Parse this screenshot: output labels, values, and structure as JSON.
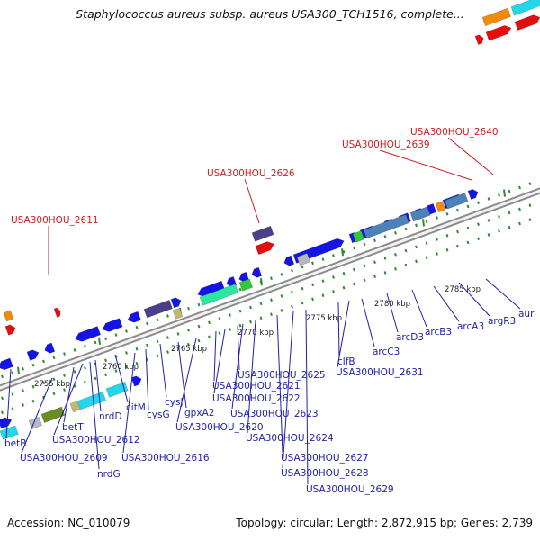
{
  "title": "Staphylococcus aureus subsp. aureus USA300_TCH1516, complete...",
  "footer": {
    "accession": "Accession: NC_010079",
    "topology": "Topology: circular; Length: 2,872,915 bp; Genes: 2,739"
  },
  "colors": {
    "line_outline": "#8c8c8c",
    "line_fill": "#f2f2f2",
    "tick": "#2e8b2e",
    "label_blue": "#1f1fa8",
    "label_red": "#cc1f1f",
    "gene_blue": "#1414e6",
    "gene_red": "#e60d0d",
    "gene_cyan": "#22d8e8",
    "gene_steel": "#4d82b8",
    "gene_purple": "#4b3f8a",
    "gene_olive": "#6b8c21",
    "gene_khaki": "#c2b874",
    "gene_green": "#2fc93a",
    "gene_mint": "#2ee6a0",
    "gene_orange": "#f08c0a",
    "gene_grey": "#b8b8b8"
  },
  "kbp_labels": [
    "2755 kbp",
    "2760 kbp",
    "2765 kbp",
    "2770 kbp",
    "2775 kbp",
    "2780 kbp",
    "2785 kbp"
  ],
  "red_labels": [
    "USA300HOU_2611",
    "USA300HOU_2626",
    "USA300HOU_2639",
    "USA300HOU_2640"
  ],
  "blue_labels": [
    "betB",
    "USA300HOU_2609",
    "betT",
    "USA300HOU_2612",
    "nrdG",
    "nrdD",
    "citM",
    "cysG",
    "USA300HOU_2616",
    "cysJ",
    "gpxA2",
    "USA300HOU_2620",
    "USA300HOU_2621",
    "USA300HOU_2622",
    "USA300HOU_2625",
    "USA300HOU_2623",
    "USA300HOU_2624",
    "USA300HOU_2627",
    "USA300HOU_2628",
    "USA300HOU_2629",
    "clfB",
    "USA300HOU_2631",
    "arcC3",
    "arcD3",
    "arcB3",
    "arcA3",
    "argR3",
    "aur"
  ]
}
